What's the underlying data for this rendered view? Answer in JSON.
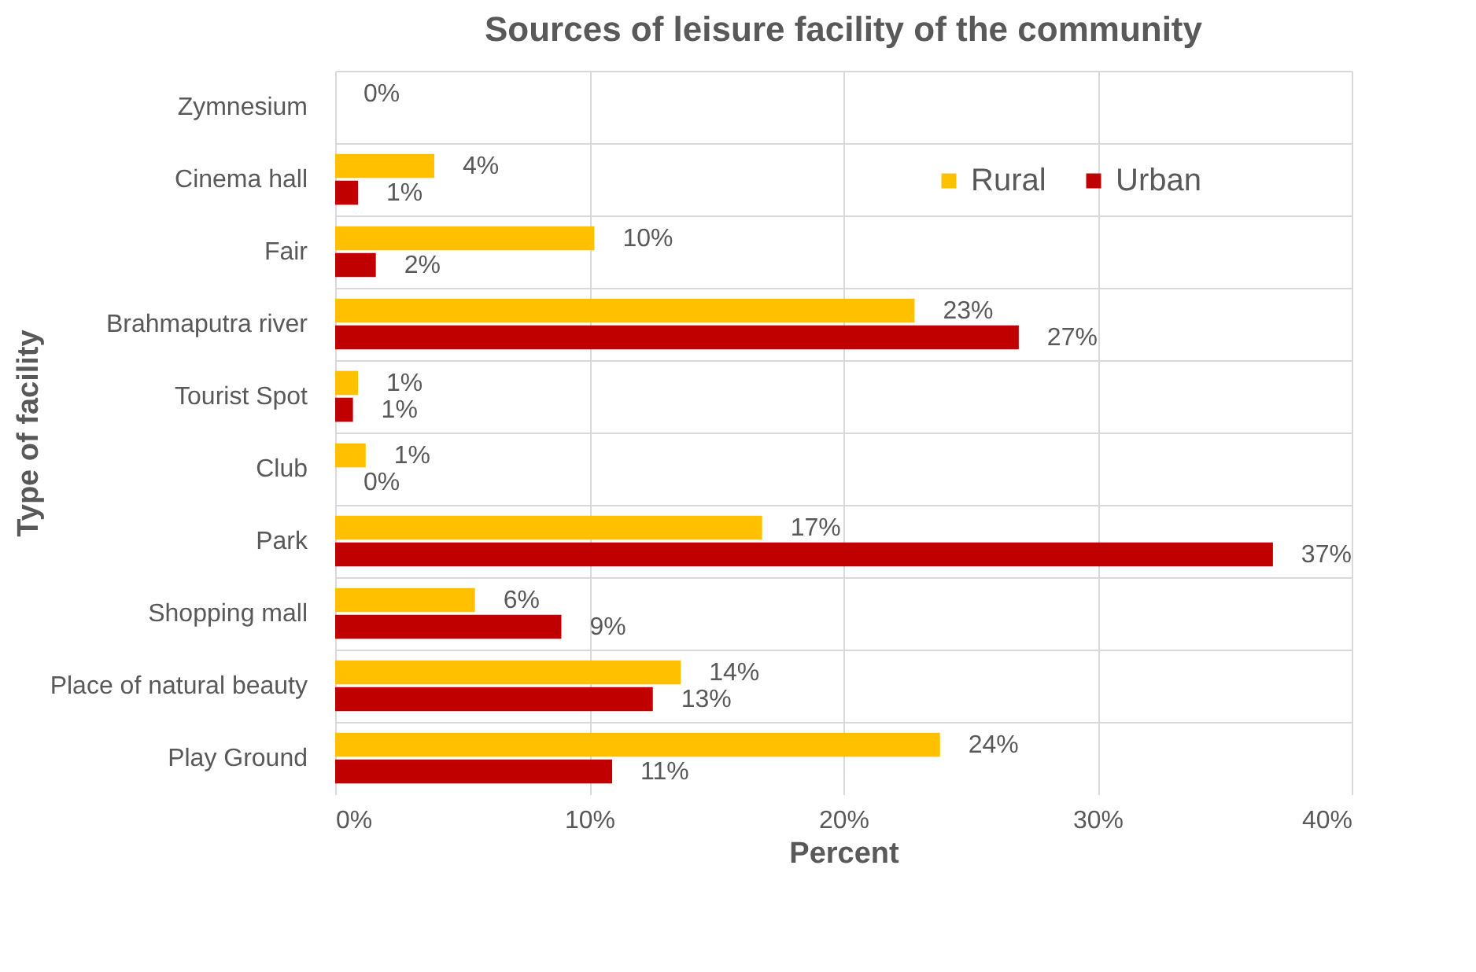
{
  "chart_data": {
    "type": "bar",
    "orientation": "horizontal",
    "title": "Sources of leisure facility of the community",
    "xlabel": "Percent",
    "ylabel": "Type of facility",
    "categories": [
      "Zymnesium",
      "Cinema hall",
      "Fair",
      "Brahmaputra river",
      "Tourist Spot",
      "Club",
      "Park",
      "Shopping mall",
      "Place of natural beauty",
      "Play Ground"
    ],
    "series": [
      {
        "name": "Rural",
        "color": "#ffc000",
        "values": [
          0,
          3.9,
          10.2,
          22.8,
          0.9,
          1.2,
          16.8,
          5.5,
          13.6,
          23.8
        ],
        "value_labels": [
          "0%",
          "4%",
          "10%",
          "23%",
          "1%",
          "1%",
          "17%",
          "6%",
          "14%",
          "24%"
        ]
      },
      {
        "name": "Urban",
        "color": "#c00000",
        "values": [
          0,
          0.9,
          1.6,
          26.9,
          0.7,
          0,
          36.9,
          8.9,
          12.5,
          10.9
        ],
        "value_labels": [
          null,
          "1%",
          "2%",
          "27%",
          "1%",
          "0%",
          "37%",
          "9%",
          "13%",
          "11%"
        ]
      }
    ],
    "xlim": [
      0,
      40
    ],
    "xticks": [
      {
        "value": 0,
        "label": "0%"
      },
      {
        "value": 10,
        "label": "10%"
      },
      {
        "value": 20,
        "label": "20%"
      },
      {
        "value": 30,
        "label": "30%"
      },
      {
        "value": 40,
        "label": "40%"
      }
    ],
    "grid": "x",
    "legend": "top right"
  }
}
